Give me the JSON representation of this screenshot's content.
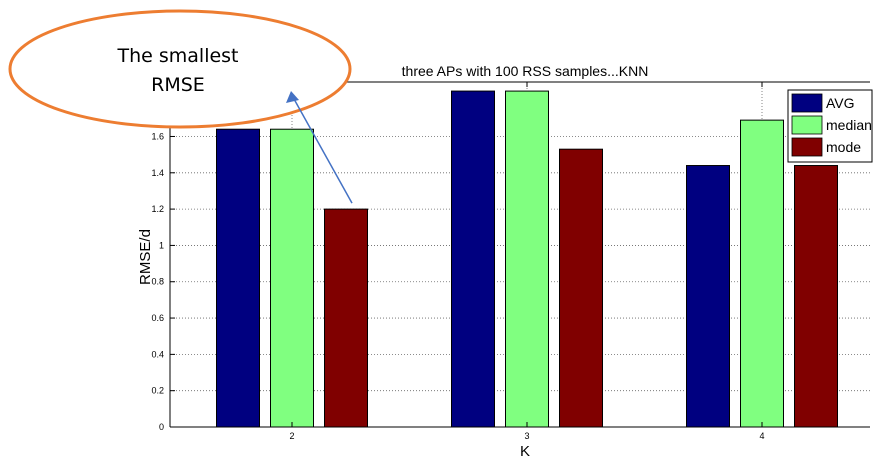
{
  "chart_data": {
    "type": "bar",
    "title": "three APs with 100 RSS samples...KNN",
    "xlabel": "K",
    "ylabel": "RMSE/d",
    "categories": [
      "2",
      "3",
      "4"
    ],
    "series": [
      {
        "name": "AVG",
        "color": "#000080",
        "values": [
          1.64,
          1.85,
          1.44
        ]
      },
      {
        "name": "median",
        "color": "#80ff80",
        "values": [
          1.64,
          1.85,
          1.69
        ]
      },
      {
        "name": "mode",
        "color": "#800000",
        "values": [
          1.2,
          1.53,
          1.44
        ]
      }
    ],
    "ylim": [
      0,
      1.9
    ],
    "yticks": [
      "0",
      "0.2",
      "0.4",
      "0.6",
      "0.8",
      "1",
      "1.2",
      "1.4",
      "1.6"
    ],
    "grid": true,
    "legend_position": "top-right"
  },
  "annotation": {
    "lines": [
      "The smallest",
      "RMSE"
    ],
    "ellipse_color": "#ed7d31",
    "arrow_color": "#4472c4",
    "points_to": {
      "category": "2",
      "series": "mode"
    }
  }
}
